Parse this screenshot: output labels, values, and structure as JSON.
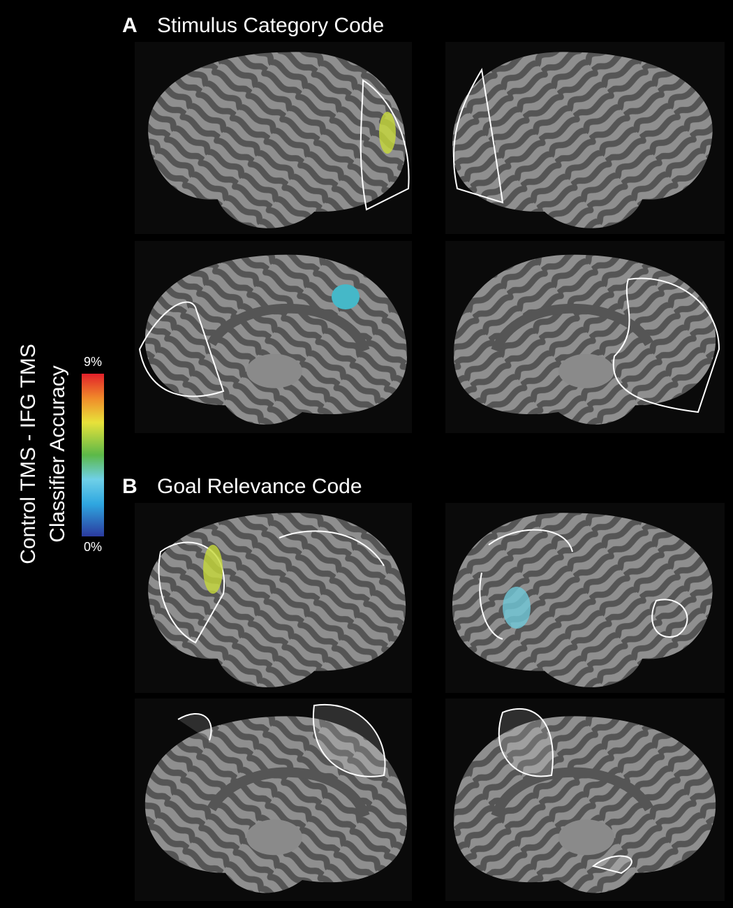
{
  "panels": [
    {
      "letter": "A",
      "title": "Stimulus Category Code"
    },
    {
      "letter": "B",
      "title": "Goal Relevance Code"
    }
  ],
  "colorbar": {
    "title": [
      "Control TMS - IFG TMS",
      "Classifier Accuracy"
    ],
    "ticks": [
      {
        "value": 0,
        "label": "0%"
      },
      {
        "value": 9,
        "label": "9%"
      }
    ]
  }
}
